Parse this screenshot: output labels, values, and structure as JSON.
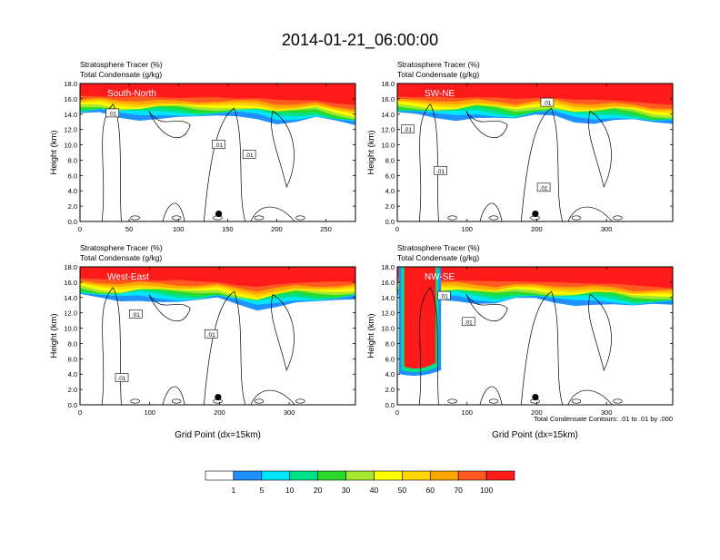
{
  "title": "2014-01-21_06:00:00",
  "colors": {
    "fill_stops": [
      "#ffffff",
      "#1e90ff",
      "#00e5ff",
      "#00e28a",
      "#2bd92b",
      "#a5e830",
      "#ffff00",
      "#ffd400",
      "#ffa500",
      "#ff5a1f",
      "#ff1a1a"
    ],
    "contour": "#000000",
    "frame": "#000000"
  },
  "colorbar": {
    "labels": [
      "1",
      "5",
      "10",
      "20",
      "30",
      "40",
      "50",
      "60",
      "70",
      "100"
    ]
  },
  "contour_note": "Total Condensate Contours: .01 to .01 by .000",
  "chart_data": [
    {
      "type": "heatmap",
      "panel": "South-North",
      "title_lines": [
        "Stratosphere Tracer   (%)",
        "Total Condensate   (g/kg)"
      ],
      "ylabel": "Height (km)",
      "xlabel": "",
      "xlim": [
        0,
        280
      ],
      "ylim": [
        0,
        18
      ],
      "xticks": [
        0,
        50,
        100,
        150,
        200,
        250
      ],
      "yticks": [
        0.0,
        2.0,
        4.0,
        6.0,
        8.0,
        10.0,
        12.0,
        14.0,
        16.0,
        18.0
      ],
      "ytick_labels": [
        "0.0",
        "2.0",
        "4.0",
        "6.0",
        "8.0",
        "10.0",
        "12.0",
        "14.0",
        "16.0",
        "18.0"
      ],
      "tracer_top_km": [
        16.4,
        16.3,
        16.2,
        16.3,
        16.2,
        16.1,
        16.2,
        16.2,
        16.0,
        16.1,
        15.9,
        15.8,
        15.8,
        15.4,
        15.2
      ],
      "marker": {
        "x": 141,
        "y": 1.0
      },
      "contour_labels": [
        {
          "text": ".01",
          "x": 33,
          "y": 14.1
        },
        {
          "text": ".01",
          "x": 141,
          "y": 10.0
        },
        {
          "text": ".01",
          "x": 172,
          "y": 8.7
        }
      ]
    },
    {
      "type": "heatmap",
      "panel": "SW-NE",
      "title_lines": [
        "Stratosphere Tracer   (%)",
        "Total Condensate   (g/kg)"
      ],
      "ylabel": "Height (km)",
      "xlabel": "",
      "xlim": [
        0,
        395
      ],
      "ylim": [
        0,
        18
      ],
      "xticks": [
        0,
        100,
        200,
        300
      ],
      "yticks": [
        0.0,
        2.0,
        4.0,
        6.0,
        8.0,
        10.0,
        12.0,
        14.0,
        16.0,
        18.0
      ],
      "ytick_labels": [
        "0.0",
        "2.0",
        "4.0",
        "6.0",
        "8.0",
        "10.0",
        "12.0",
        "14.0",
        "16.0",
        "18.0"
      ],
      "tracer_top_km": [
        16.3,
        16.2,
        16.3,
        16.1,
        16.2,
        16.2,
        16.0,
        16.1,
        16.1,
        15.9,
        15.9,
        15.8,
        15.6,
        15.4,
        15.2
      ],
      "marker": {
        "x": 198,
        "y": 1.0
      },
      "contour_labels": [
        {
          "text": ".01",
          "x": 15,
          "y": 12.0
        },
        {
          "text": ".01",
          "x": 62,
          "y": 6.6
        },
        {
          "text": ".01",
          "x": 215,
          "y": 15.5
        },
        {
          "text": ".01",
          "x": 210,
          "y": 4.4
        }
      ]
    },
    {
      "type": "heatmap",
      "panel": "West-East",
      "title_lines": [
        "Stratosphere Tracer   (%)",
        "Total Condensate   (g/kg)"
      ],
      "ylabel": "Height (km)",
      "xlabel": "Grid Point (dx=15km)",
      "xlim": [
        0,
        395
      ],
      "ylim": [
        0,
        18
      ],
      "xticks": [
        0,
        100,
        200,
        300
      ],
      "yticks": [
        0.0,
        2.0,
        4.0,
        6.0,
        8.0,
        10.0,
        12.0,
        14.0,
        16.0,
        18.0
      ],
      "ytick_labels": [
        "0.0",
        "2.0",
        "4.0",
        "6.0",
        "8.0",
        "10.0",
        "12.0",
        "14.0",
        "16.0",
        "18.0"
      ],
      "tracer_top_km": [
        16.5,
        16.4,
        16.3,
        16.3,
        16.2,
        16.3,
        16.1,
        16.0,
        15.6,
        15.4,
        15.7,
        15.9,
        16.0,
        16.1,
        16.0
      ],
      "marker": {
        "x": 198,
        "y": 1.0
      },
      "contour_labels": [
        {
          "text": ".01",
          "x": 80,
          "y": 11.8
        },
        {
          "text": ".01",
          "x": 188,
          "y": 9.2
        },
        {
          "text": ".01",
          "x": 60,
          "y": 3.5
        }
      ]
    },
    {
      "type": "heatmap",
      "panel": "NW-SE",
      "title_lines": [
        "Stratosphere Tracer   (%)",
        "Total Condensate   (g/kg)"
      ],
      "ylabel": "Height (km)",
      "xlabel": "Grid Point (dx=15km)",
      "xlim": [
        0,
        395
      ],
      "ylim": [
        0,
        18
      ],
      "xticks": [
        0,
        100,
        200,
        300
      ],
      "yticks": [
        0.0,
        2.0,
        4.0,
        6.0,
        8.0,
        10.0,
        12.0,
        14.0,
        16.0,
        18.0
      ],
      "ytick_labels": [
        "0.0",
        "2.0",
        "4.0",
        "6.0",
        "8.0",
        "10.0",
        "12.0",
        "14.0",
        "16.0",
        "18.0"
      ],
      "tracer_top_km": [
        16.6,
        16.4,
        16.3,
        16.2,
        16.2,
        16.1,
        16.1,
        16.0,
        16.0,
        15.9,
        15.8,
        15.8,
        15.6,
        15.4,
        15.2
      ],
      "intrusion": {
        "x": [
          10,
          55
        ],
        "bottom_km": 5.0
      },
      "marker": {
        "x": 198,
        "y": 1.0
      },
      "contour_labels": [
        {
          "text": ".01",
          "x": 67,
          "y": 14.2
        },
        {
          "text": ".01",
          "x": 102,
          "y": 10.8
        }
      ]
    }
  ]
}
